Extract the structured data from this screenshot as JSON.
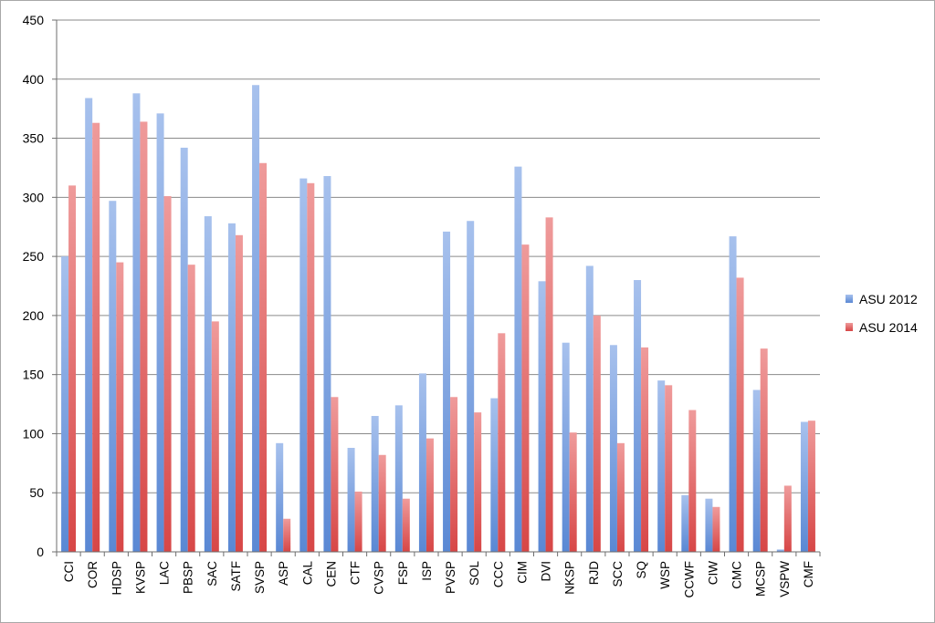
{
  "chart_data": {
    "type": "bar",
    "categories": [
      "CCI",
      "COR",
      "HDSP",
      "KVSP",
      "LAC",
      "PBSP",
      "SAC",
      "SATF",
      "SVSP",
      "ASP",
      "CAL",
      "CEN",
      "CTF",
      "CVSP",
      "FSP",
      "ISP",
      "PVSP",
      "SOL",
      "CCC",
      "CIM",
      "DVI",
      "NKSP",
      "RJD",
      "SCC",
      "SQ",
      "WSP",
      "CCWF",
      "CIW",
      "CMC",
      "MCSP",
      "VSPW",
      "CMF"
    ],
    "series": [
      {
        "name": "ASU 2012",
        "color": "#5f8fdf",
        "values": [
          250,
          384,
          297,
          388,
          371,
          342,
          284,
          278,
          395,
          92,
          316,
          318,
          88,
          115,
          124,
          151,
          271,
          280,
          130,
          326,
          229,
          177,
          242,
          175,
          230,
          145,
          48,
          45,
          267,
          137,
          2,
          110
        ]
      },
      {
        "name": "ASU 2014",
        "color": "#e24a4a",
        "values": [
          310,
          363,
          245,
          364,
          301,
          243,
          195,
          268,
          329,
          28,
          312,
          131,
          51,
          82,
          45,
          96,
          131,
          118,
          185,
          260,
          283,
          101,
          200,
          92,
          173,
          141,
          120,
          38,
          232,
          172,
          56,
          111
        ]
      }
    ],
    "ylim": [
      0,
      450
    ],
    "yticks": [
      0,
      50,
      100,
      150,
      200,
      250,
      300,
      350,
      400,
      450
    ],
    "grid": true,
    "legend": "right",
    "title": "",
    "xlabel": "",
    "ylabel": ""
  }
}
